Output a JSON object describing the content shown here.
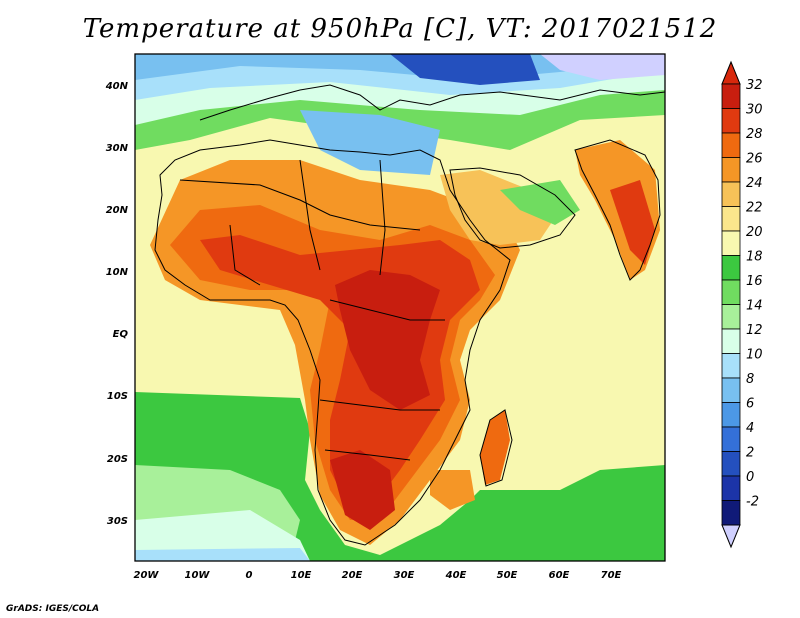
{
  "title": "Temperature at 950hPa [C], VT: 2017021512",
  "credit": "GrADS: IGES/COLA",
  "lat_labels": [
    "40N",
    "30N",
    "20N",
    "10N",
    "EQ",
    "10S",
    "20S",
    "30S"
  ],
  "lon_labels": [
    "20W",
    "10W",
    "0",
    "10E",
    "20E",
    "30E",
    "40E",
    "50E",
    "60E",
    "70E"
  ],
  "colorbar": {
    "labels": [
      "32",
      "30",
      "28",
      "26",
      "24",
      "22",
      "20",
      "18",
      "16",
      "14",
      "12",
      "10",
      "8",
      "6",
      "4",
      "2",
      "0",
      "-2"
    ],
    "colors": [
      "#c81e0f",
      "#e03a10",
      "#ef6a10",
      "#f59626",
      "#f7c258",
      "#fbe68c",
      "#f8f8b0",
      "#3cc840",
      "#70dc60",
      "#a8f09a",
      "#d8ffe8",
      "#a8e0fa",
      "#78c0f0",
      "#4c98e6",
      "#3470d8",
      "#2450be",
      "#1c34a8",
      "#101a78"
    ],
    "top_arrow": "#d8280c",
    "bottom_arrow": "#d0d0ff"
  }
}
